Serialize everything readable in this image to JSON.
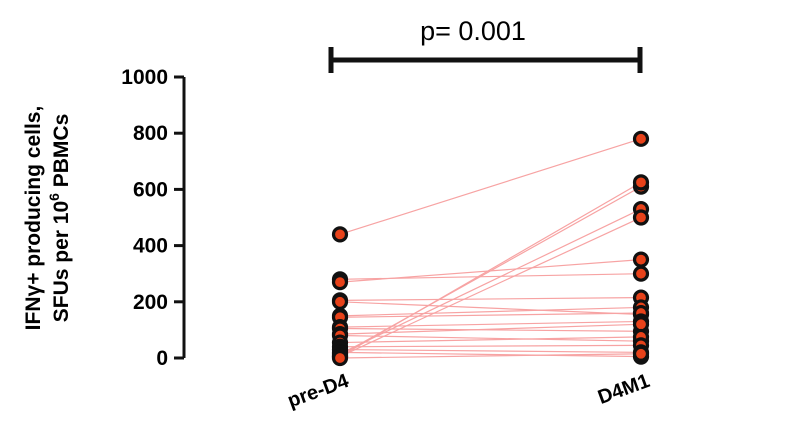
{
  "chart_data": {
    "type": "scatter",
    "categories": [
      "pre-D4",
      "D4M1"
    ],
    "ylabel_line1": "IFNγ+ producing cells,",
    "ylabel_line2_prefix": "SFUs per 10",
    "ylabel_line2_sup": "6",
    "ylabel_line2_suffix": " PBMCs",
    "ylim": [
      0,
      1000
    ],
    "yticks": [
      "0",
      "200",
      "400",
      "600",
      "800",
      "1000"
    ],
    "annotation": "p= 0.001",
    "grid": false,
    "legend": "none",
    "colors": {
      "marker_fill": "#e8421a",
      "marker_edge": "#111111",
      "pair_line": "#f7a3a3",
      "bracket": "#111111"
    },
    "pairs": [
      {
        "pre": 440,
        "post": 780
      },
      {
        "pre": 280,
        "post": 300
      },
      {
        "pre": 270,
        "post": 350
      },
      {
        "pre": 205,
        "post": 215
      },
      {
        "pre": 200,
        "post": 155
      },
      {
        "pre": 150,
        "post": 180
      },
      {
        "pre": 145,
        "post": 160
      },
      {
        "pre": 110,
        "post": 130
      },
      {
        "pre": 105,
        "post": 95
      },
      {
        "pre": 85,
        "post": 120
      },
      {
        "pre": 80,
        "post": 60
      },
      {
        "pre": 55,
        "post": 75
      },
      {
        "pre": 40,
        "post": 45
      },
      {
        "pre": 30,
        "post": 20
      },
      {
        "pre": 20,
        "post": 5
      },
      {
        "pre": 15,
        "post": 530
      },
      {
        "pre": 10,
        "post": 610
      },
      {
        "pre": 5,
        "post": 625
      },
      {
        "pre": 5,
        "post": 500
      },
      {
        "pre": 0,
        "post": 15
      }
    ]
  }
}
